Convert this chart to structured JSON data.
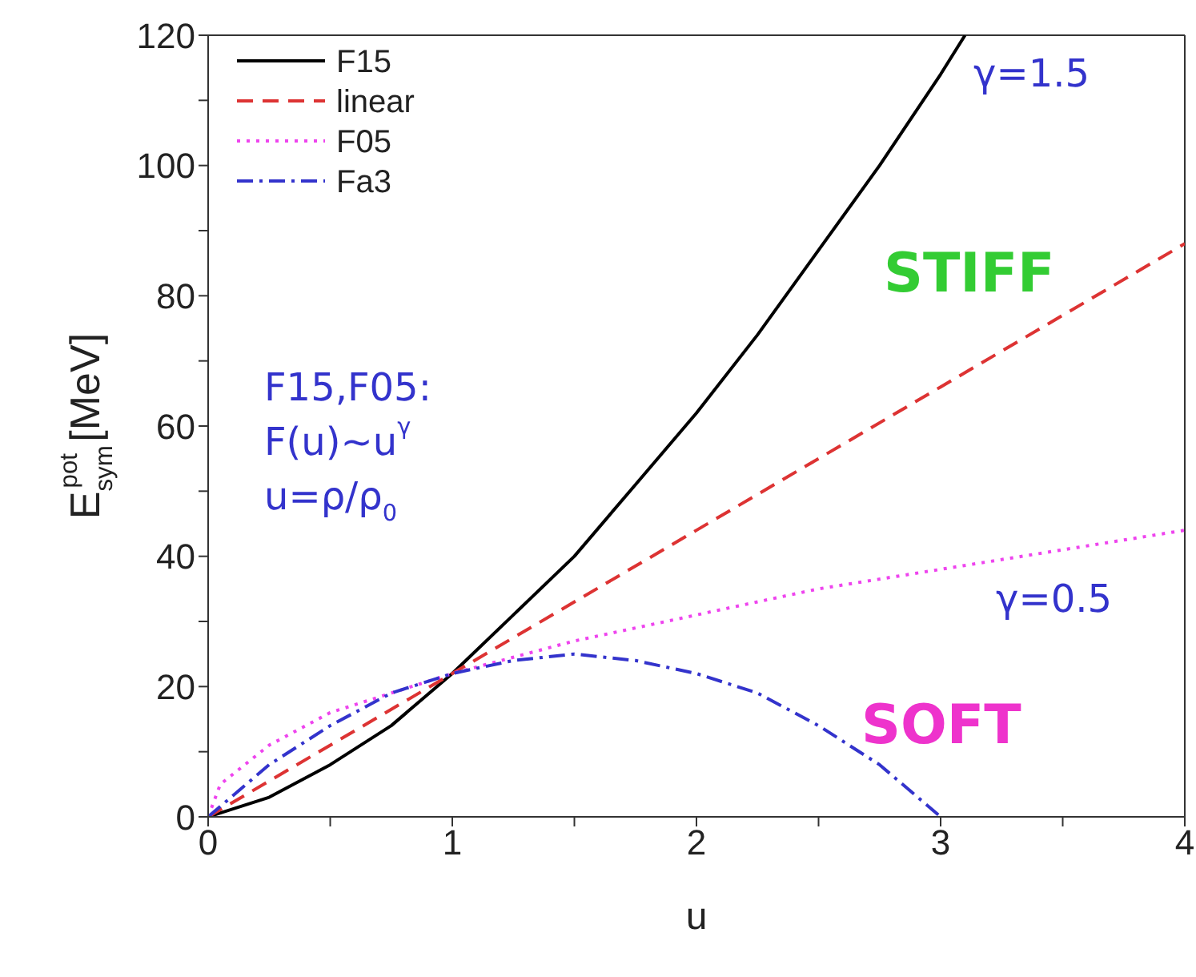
{
  "chart_data": {
    "type": "line",
    "xlabel": "u",
    "ylabel": "E$_{sym}$$^{pot}$ [MeV]",
    "xlim": [
      0,
      4
    ],
    "xticks": [
      0,
      {
        "value": 0.5,
        "label": null
      },
      1,
      {
        "value": 1.5,
        "label": null
      },
      2,
      {
        "value": 2.5,
        "label": null
      },
      3,
      {
        "value": 3.5,
        "label": null
      },
      4
    ],
    "ylim": [
      0,
      120
    ],
    "yticks": [
      0,
      {
        "value": 10,
        "label": null
      },
      20,
      {
        "value": 30,
        "label": null
      },
      40,
      {
        "value": 50,
        "label": null
      },
      60,
      {
        "value": 70,
        "label": null
      },
      80,
      {
        "value": 90,
        "label": null
      },
      100,
      {
        "value": 110,
        "label": null
      },
      120
    ],
    "legend": "top left",
    "grid": false,
    "marker": "none",
    "series": [
      {
        "name": "F15",
        "color": "#000000",
        "line_style": "solid",
        "x": [
          0,
          0.25,
          0.5,
          0.75,
          1,
          1.25,
          1.5,
          1.75,
          2,
          2.25,
          2.5,
          2.75,
          3,
          3.1
        ],
        "values": [
          0,
          3,
          8,
          14,
          22,
          31,
          40,
          51,
          62,
          74,
          87,
          100,
          114,
          120
        ]
      },
      {
        "name": "linear",
        "color": "#dd3333",
        "line_style": "dashed",
        "x": [
          0,
          1,
          2,
          3,
          4
        ],
        "values": [
          0,
          22,
          44,
          66,
          88
        ]
      },
      {
        "name": "F05",
        "color": "#ee44ee",
        "line_style": "dotted",
        "x": [
          0,
          0.05,
          0.25,
          0.5,
          0.75,
          1,
          1.5,
          2,
          2.5,
          3,
          3.5,
          4
        ],
        "values": [
          0,
          5,
          11,
          16,
          19,
          22,
          27,
          31,
          35,
          38,
          41,
          44
        ]
      },
      {
        "name": "Fa3",
        "color": "#3333cc",
        "line_style": "dashdot",
        "x": [
          0,
          0.25,
          0.5,
          0.75,
          1,
          1.25,
          1.5,
          1.75,
          2,
          2.25,
          2.5,
          2.75,
          3
        ],
        "values": [
          0,
          8,
          14,
          19,
          22,
          24,
          25,
          24,
          22,
          19,
          14,
          8,
          0
        ]
      }
    ],
    "annotations": [
      "γ=1.5",
      "STIFF",
      "F15,F05:",
      "F(u)~u$^{γ}$",
      "u=ρ/ρ$_{0}$",
      "γ=0.5",
      "SOFT"
    ]
  }
}
